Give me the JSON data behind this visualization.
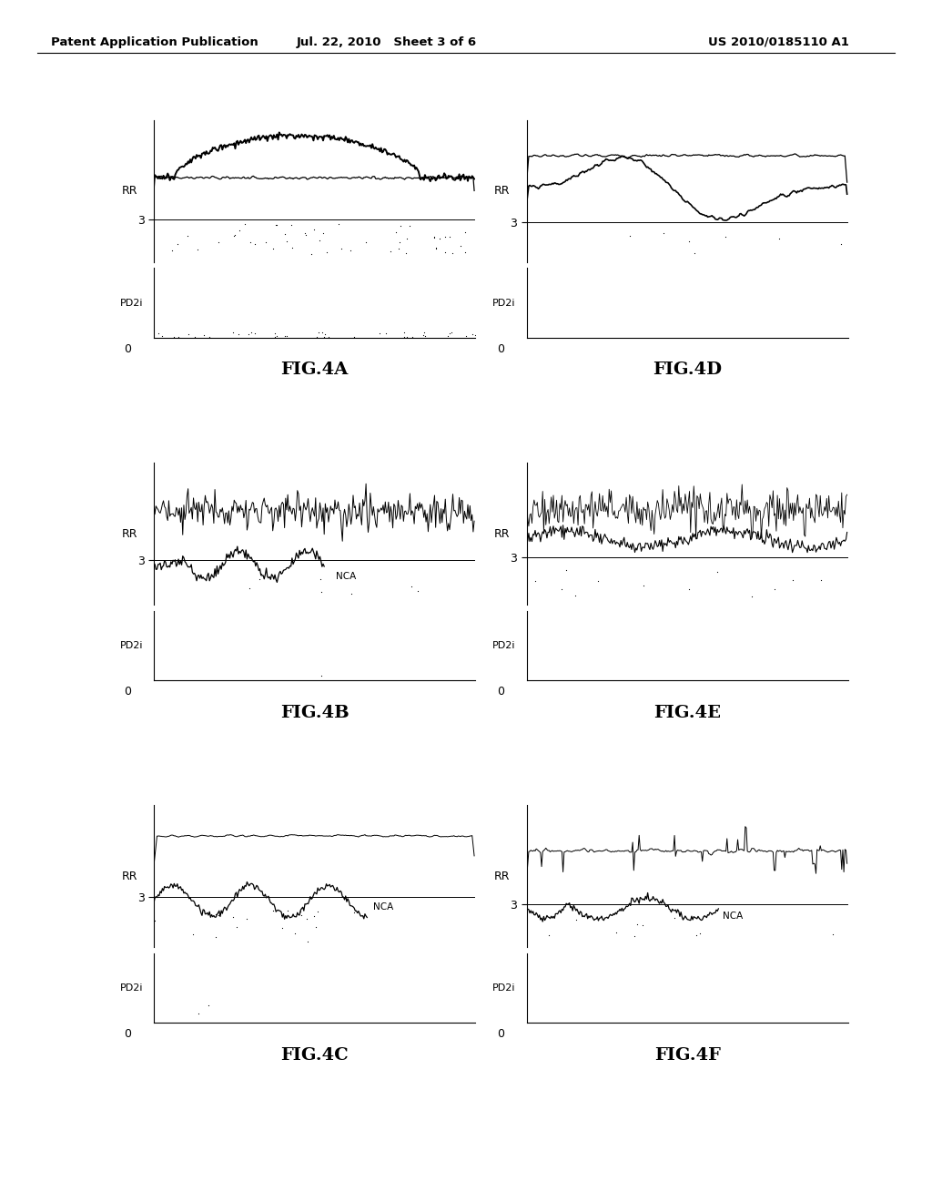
{
  "header_left": "Patent Application Publication",
  "header_mid": "Jul. 22, 2010   Sheet 3 of 6",
  "header_right": "US 2010/0185110 A1",
  "figures": [
    {
      "label": "FIG.4A",
      "col": 0,
      "row": 0
    },
    {
      "label": "FIG.4D",
      "col": 1,
      "row": 0
    },
    {
      "label": "FIG.4B",
      "col": 0,
      "row": 1
    },
    {
      "label": "FIG.4E",
      "col": 1,
      "row": 1
    },
    {
      "label": "FIG.4C",
      "col": 0,
      "row": 2
    },
    {
      "label": "FIG.4F",
      "col": 1,
      "row": 2
    }
  ],
  "background_color": "#ffffff"
}
